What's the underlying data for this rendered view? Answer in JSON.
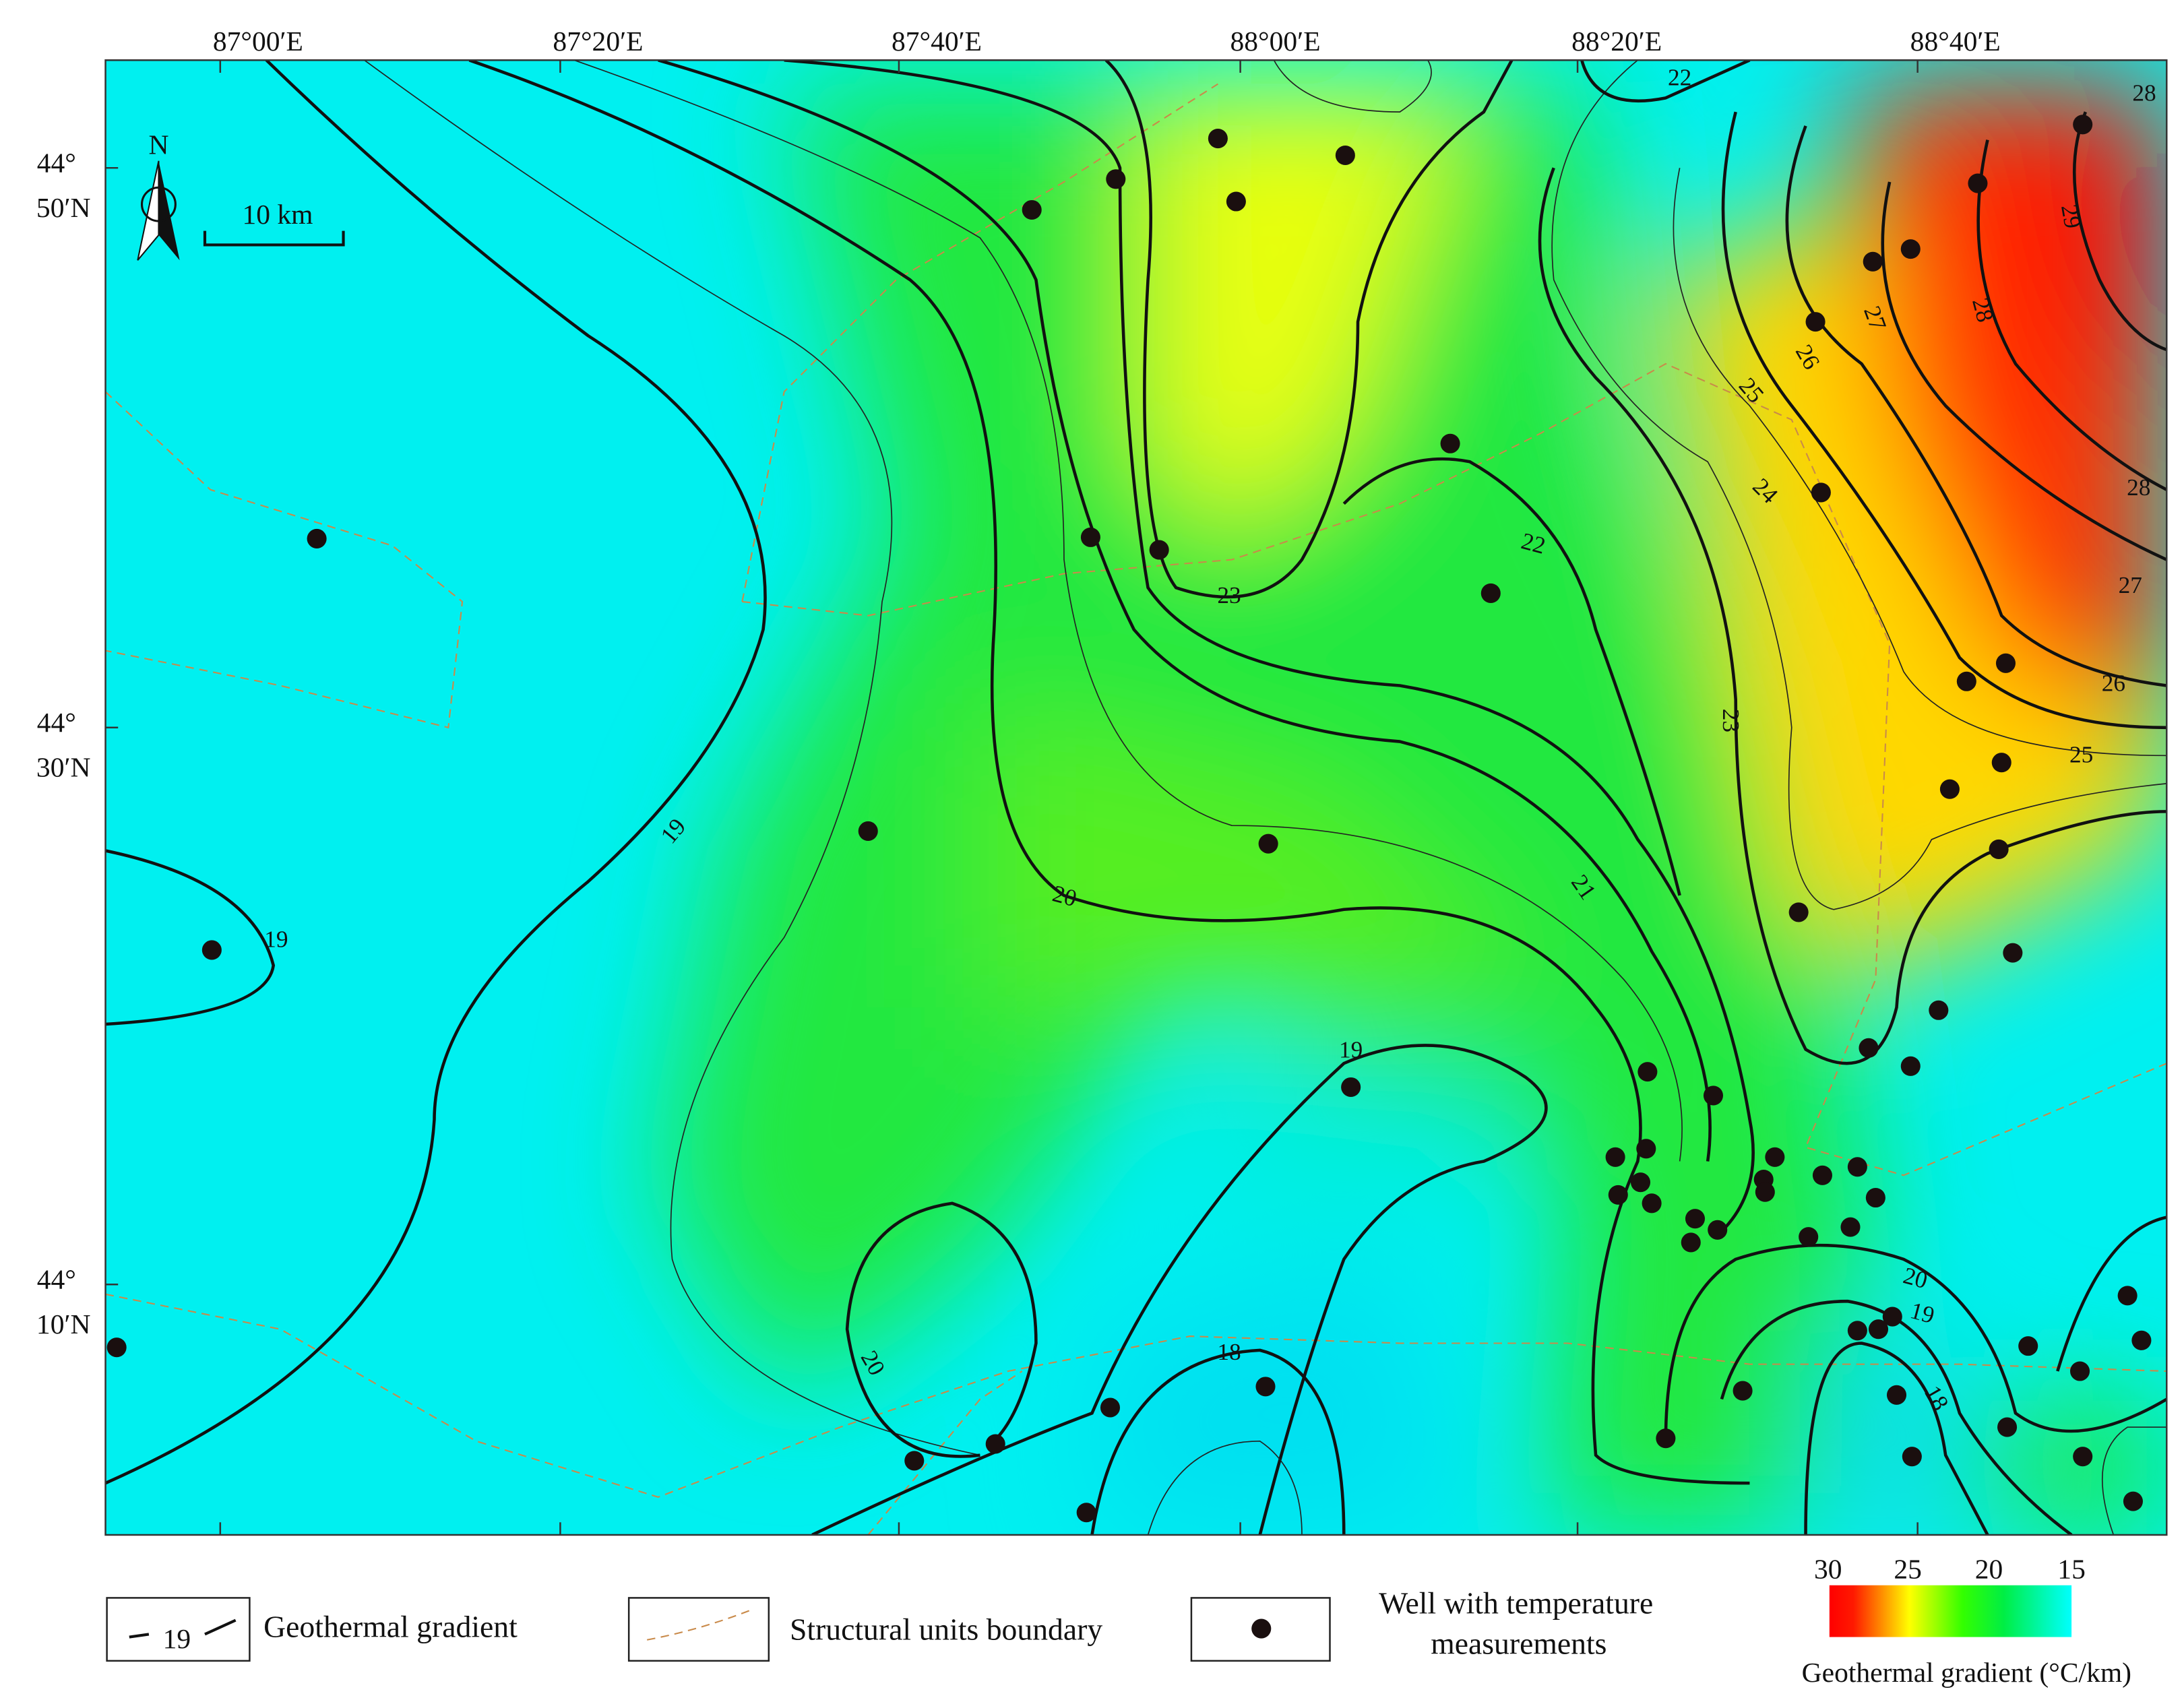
{
  "longitude_labels": [
    "87°00′E",
    "87°20′E",
    "87°40′E",
    "88°00′E",
    "88°20′E",
    "88°40′E"
  ],
  "latitude_labels": [
    {
      "deg": "44°",
      "min": "50′N"
    },
    {
      "deg": "44°",
      "min": "30′N"
    },
    {
      "deg": "44°",
      "min": "10′N"
    }
  ],
  "north": "N",
  "scale_bar": "10 km",
  "contour_labels": [
    "22",
    "28",
    "29",
    "27",
    "28",
    "26",
    "25",
    "24",
    "28",
    "27",
    "26",
    "25",
    "23",
    "22",
    "23",
    "21",
    "20",
    "19",
    "19",
    "19",
    "20",
    "18",
    "20",
    "19",
    "18"
  ],
  "legend": {
    "sample_label": "19",
    "items": [
      "Geothermal gradient",
      "Structural units boundary",
      "Well with temperature",
      "measurements"
    ]
  },
  "colorbar": {
    "ticks": [
      "30",
      "25",
      "20",
      "15"
    ],
    "title": "Geothermal gradient (°C/km)"
  }
}
